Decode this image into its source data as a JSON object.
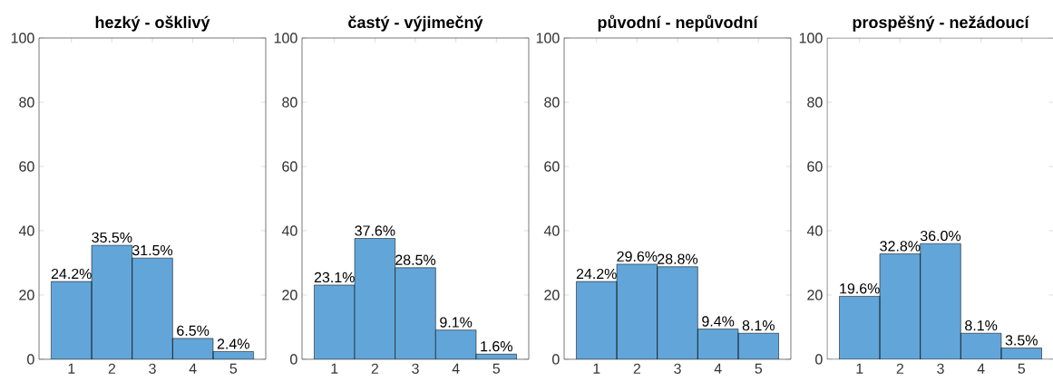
{
  "chart_data": [
    {
      "type": "bar",
      "title": "hezký - ošklivý",
      "categories": [
        "1",
        "2",
        "3",
        "4",
        "5"
      ],
      "values": [
        24.2,
        35.5,
        31.5,
        6.5,
        2.4
      ],
      "value_labels": [
        "24.2%",
        "35.5%",
        "31.5%",
        "6.5%",
        "2.4%"
      ],
      "color": "#62a6d9",
      "ylim": [
        0,
        100
      ],
      "yticks": [
        0,
        20,
        40,
        60,
        80,
        100
      ]
    },
    {
      "type": "bar",
      "title": "častý - výjimečný",
      "categories": [
        "1",
        "2",
        "3",
        "4",
        "5"
      ],
      "values": [
        23.1,
        37.6,
        28.5,
        9.1,
        1.6
      ],
      "value_labels": [
        "23.1%",
        "37.6%",
        "28.5%",
        "9.1%",
        "1.6%"
      ],
      "color": "#62a6d9",
      "ylim": [
        0,
        100
      ],
      "yticks": [
        0,
        20,
        40,
        60,
        80,
        100
      ]
    },
    {
      "type": "bar",
      "title": "původní - nepůvodní",
      "categories": [
        "1",
        "2",
        "3",
        "4",
        "5"
      ],
      "values": [
        24.2,
        29.6,
        28.8,
        9.4,
        8.1
      ],
      "value_labels": [
        "24.2%",
        "29.6%",
        "28.8%",
        "9.4%",
        "8.1%"
      ],
      "color": "#62a6d9",
      "ylim": [
        0,
        100
      ],
      "yticks": [
        0,
        20,
        40,
        60,
        80,
        100
      ]
    },
    {
      "type": "bar",
      "title": "prospěšný - nežádoucí",
      "categories": [
        "1",
        "2",
        "3",
        "4",
        "5"
      ],
      "values": [
        19.6,
        32.8,
        36.0,
        8.1,
        3.5
      ],
      "value_labels": [
        "19.6%",
        "32.8%",
        "36.0%",
        "8.1%",
        "3.5%"
      ],
      "color": "#62a6d9",
      "ylim": [
        0,
        100
      ],
      "yticks": [
        0,
        20,
        40,
        60,
        80,
        100
      ]
    }
  ]
}
